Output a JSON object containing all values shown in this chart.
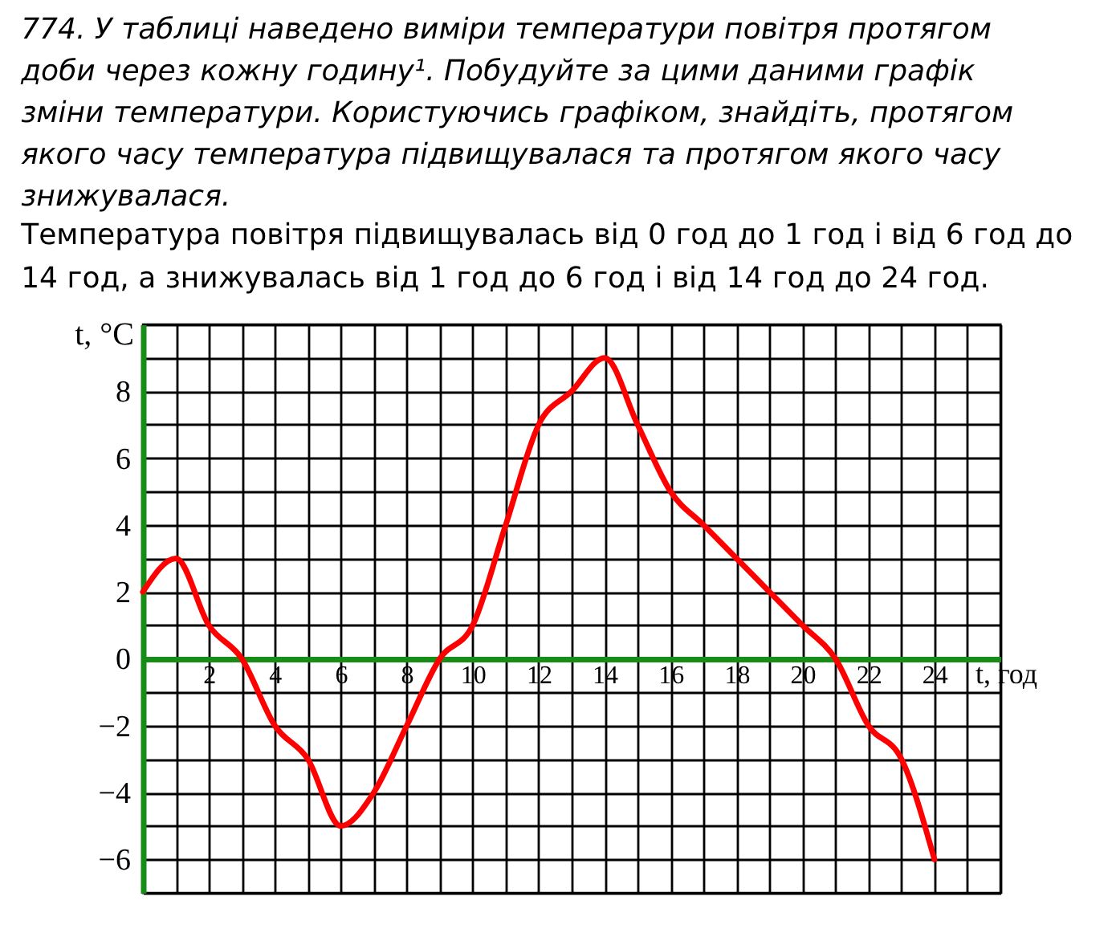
{
  "chart_data": {
    "type": "line",
    "title": "774. У таблиці наведено виміри температури повітря протягом доби через кожну годину¹. Побудуйте за цими даними графік зміни температури. Користуючись графіком, знайдіть, протягом якого часу температура підвищувалася та протягом якого часу знижувалася.",
    "subtitle": "Температура повітря підвищувалась від 0 год до 1 год і від 6 год до 14 год, а знижувалась від 1 год до 6 год і від 14 год до 24 год.",
    "xlabel": "t, год",
    "ylabel": "t, °C",
    "x": [
      0,
      1,
      2,
      3,
      4,
      5,
      6,
      7,
      8,
      9,
      10,
      11,
      12,
      13,
      14,
      15,
      16,
      17,
      18,
      19,
      20,
      21,
      22,
      23,
      24
    ],
    "series": [
      {
        "color": "#ff0000",
        "values": [
          2,
          3,
          1,
          0,
          -2,
          -3,
          -5,
          -4,
          -2,
          0,
          1,
          4,
          7,
          8,
          9,
          7,
          5,
          4,
          3,
          2,
          1,
          0,
          -2,
          -3,
          -6
        ]
      }
    ],
    "xlim": [
      0,
      26
    ],
    "ylim": [
      -7,
      10
    ],
    "xticks": [
      {
        "value": 0,
        "label": null
      },
      {
        "value": 1,
        "label": null
      },
      2,
      {
        "value": 3,
        "label": null
      },
      4,
      {
        "value": 5,
        "label": null
      },
      6,
      {
        "value": 7,
        "label": null
      },
      8,
      {
        "value": 9,
        "label": null
      },
      10,
      {
        "value": 11,
        "label": null
      },
      12,
      {
        "value": 13,
        "label": null
      },
      14,
      {
        "value": 15,
        "label": null
      },
      16,
      {
        "value": 17,
        "label": null
      },
      18,
      {
        "value": 19,
        "label": null
      },
      20,
      {
        "value": 21,
        "label": null
      },
      22,
      {
        "value": 23,
        "label": null
      },
      24,
      {
        "value": 25,
        "label": null
      },
      {
        "value": 26,
        "label": null
      }
    ],
    "yticks": [
      {
        "value": -7,
        "label": null
      },
      -6,
      {
        "value": -5,
        "label": null
      },
      -4,
      {
        "value": -3,
        "label": null
      },
      -2,
      {
        "value": -1,
        "label": null
      },
      0,
      {
        "value": 1,
        "label": null
      },
      2,
      {
        "value": 3,
        "label": null
      },
      4,
      {
        "value": 5,
        "label": null
      },
      6,
      {
        "value": 7,
        "label": null
      },
      8,
      {
        "value": 9,
        "label": null
      },
      {
        "value": 10,
        "label": null
      }
    ],
    "grid": true,
    "line_style": "solid"
  }
}
